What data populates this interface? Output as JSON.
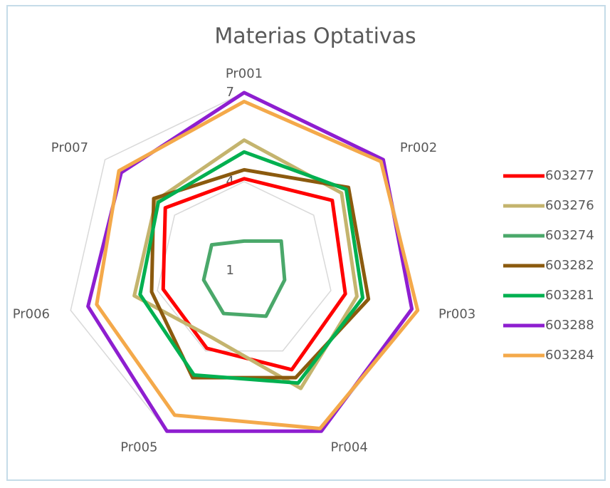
{
  "chart_data": {
    "type": "radar",
    "title": "Materias Optativas",
    "categories": [
      "Pr001",
      "Pr002",
      "Pr003",
      "Pr004",
      "Pr005",
      "Pr006",
      "Pr007"
    ],
    "ylim": [
      1,
      7
    ],
    "yticks": [
      1,
      4,
      7
    ],
    "grid": true,
    "legend": "right",
    "series": [
      {
        "name": "603277",
        "color": "#ff0000",
        "values": [
          4.1,
          4.8,
          4.5,
          4.7,
          3.9,
          3.8,
          4.4
        ]
      },
      {
        "name": "603276",
        "color": "#c4b46e",
        "values": [
          5.4,
          5.2,
          4.9,
          5.4,
          3.5,
          4.8,
          4.8
        ]
      },
      {
        "name": "603274",
        "color": "#4aa86a",
        "values": [
          2.0,
          2.6,
          2.4,
          2.7,
          2.6,
          2.4,
          2.4
        ]
      },
      {
        "name": "603282",
        "color": "#8b5a0e",
        "values": [
          4.4,
          5.5,
          5.3,
          5.0,
          5.0,
          4.2,
          4.9
        ]
      },
      {
        "name": "603281",
        "color": "#00b050",
        "values": [
          5.0,
          5.4,
          5.1,
          5.2,
          4.9,
          4.6,
          4.7
        ]
      },
      {
        "name": "603288",
        "color": "#8e1ed0",
        "values": [
          7.0,
          7.0,
          6.8,
          7.0,
          7.0,
          6.4,
          6.3
        ]
      },
      {
        "name": "603284",
        "color": "#f4a94a",
        "values": [
          6.7,
          6.9,
          7.0,
          6.9,
          6.4,
          6.1,
          6.4
        ]
      }
    ]
  }
}
